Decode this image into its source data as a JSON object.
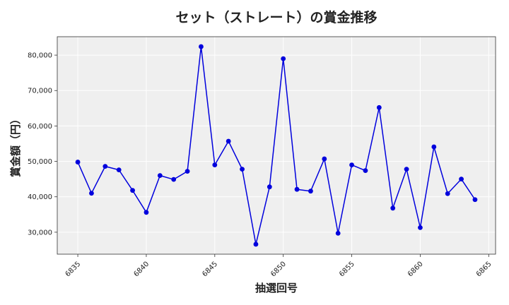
{
  "chart_data": {
    "type": "line",
    "title": "セット（ストレート）の賞金推移",
    "xlabel": "抽選回号",
    "ylabel": "賞金額（円）",
    "x_ticks": [
      6835,
      6840,
      6845,
      6850,
      6855,
      6860,
      6865
    ],
    "y_ticks": [
      30000,
      40000,
      50000,
      60000,
      70000,
      80000
    ],
    "xlim": [
      6833.5,
      6865.5
    ],
    "ylim": [
      23800,
      85200
    ],
    "grid": true,
    "series": [
      {
        "color": "#0000dd",
        "marker": "circle",
        "x": [
          6835,
          6836,
          6837,
          6838,
          6839,
          6840,
          6841,
          6842,
          6843,
          6844,
          6845,
          6846,
          6847,
          6848,
          6849,
          6850,
          6851,
          6852,
          6853,
          6854,
          6855,
          6856,
          6857,
          6858,
          6859,
          6860,
          6861,
          6862,
          6863,
          6864
        ],
        "y": [
          49800,
          41000,
          48600,
          47600,
          41800,
          35600,
          46000,
          44900,
          47200,
          82400,
          49000,
          55700,
          47800,
          26600,
          42800,
          79000,
          42100,
          41600,
          50700,
          29700,
          49000,
          47400,
          65200,
          36800,
          47800,
          31300,
          54100,
          40900,
          45000,
          39200
        ]
      }
    ]
  },
  "colors": {
    "plot_background": "#efefef",
    "grid": "#ffffff",
    "line": "#0000dd"
  }
}
